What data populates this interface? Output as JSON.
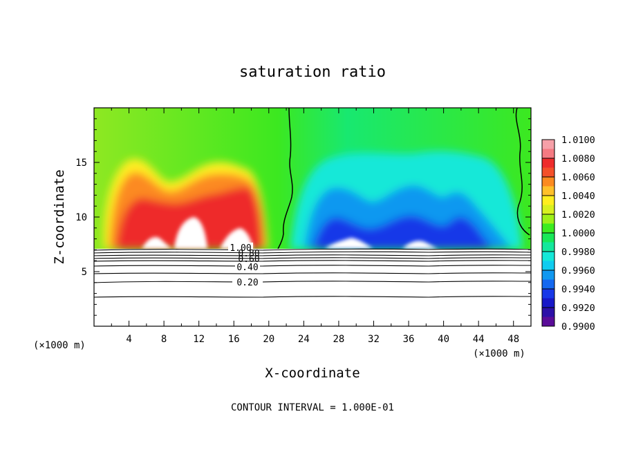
{
  "chart_data": {
    "type": "heatmap",
    "title": "saturation ratio",
    "xlabel": "X-coordinate",
    "ylabel": "Z-coordinate",
    "x_unit": "(×1000 m)",
    "x_unit_right": "(×1000 m)",
    "xlim": [
      0,
      50
    ],
    "ylim": [
      0,
      20
    ],
    "xticks": [
      "4",
      "8",
      "12",
      "16",
      "20",
      "24",
      "28",
      "32",
      "36",
      "40",
      "44",
      "48"
    ],
    "yticks": [
      "5",
      "10",
      "15"
    ],
    "colorbar": {
      "min": 0.99,
      "max": 1.01,
      "labels": [
        "1.0100",
        "1.0080",
        "1.0060",
        "1.0040",
        "1.0020",
        "1.0000",
        "0.9980",
        "0.9960",
        "0.9940",
        "0.9920",
        "0.9900"
      ],
      "colors": [
        "#f6a0a8",
        "#f47a82",
        "#ee2c2c",
        "#f4502a",
        "#fc8a20",
        "#ffc02a",
        "#ffee20",
        "#d8f020",
        "#9ef018",
        "#3cec20",
        "#18e858",
        "#14e89c",
        "#14e8d8",
        "#10ccf0",
        "#1098f0",
        "#1468f0",
        "#1838e8",
        "#1818c8",
        "#2c10a8",
        "#5a0c98"
      ]
    },
    "contour_labels": [
      "1.00",
      "0.80",
      "0.60",
      "0.40",
      "0.20"
    ],
    "footer": "CONTOUR INTERVAL = 1.000E-01"
  }
}
